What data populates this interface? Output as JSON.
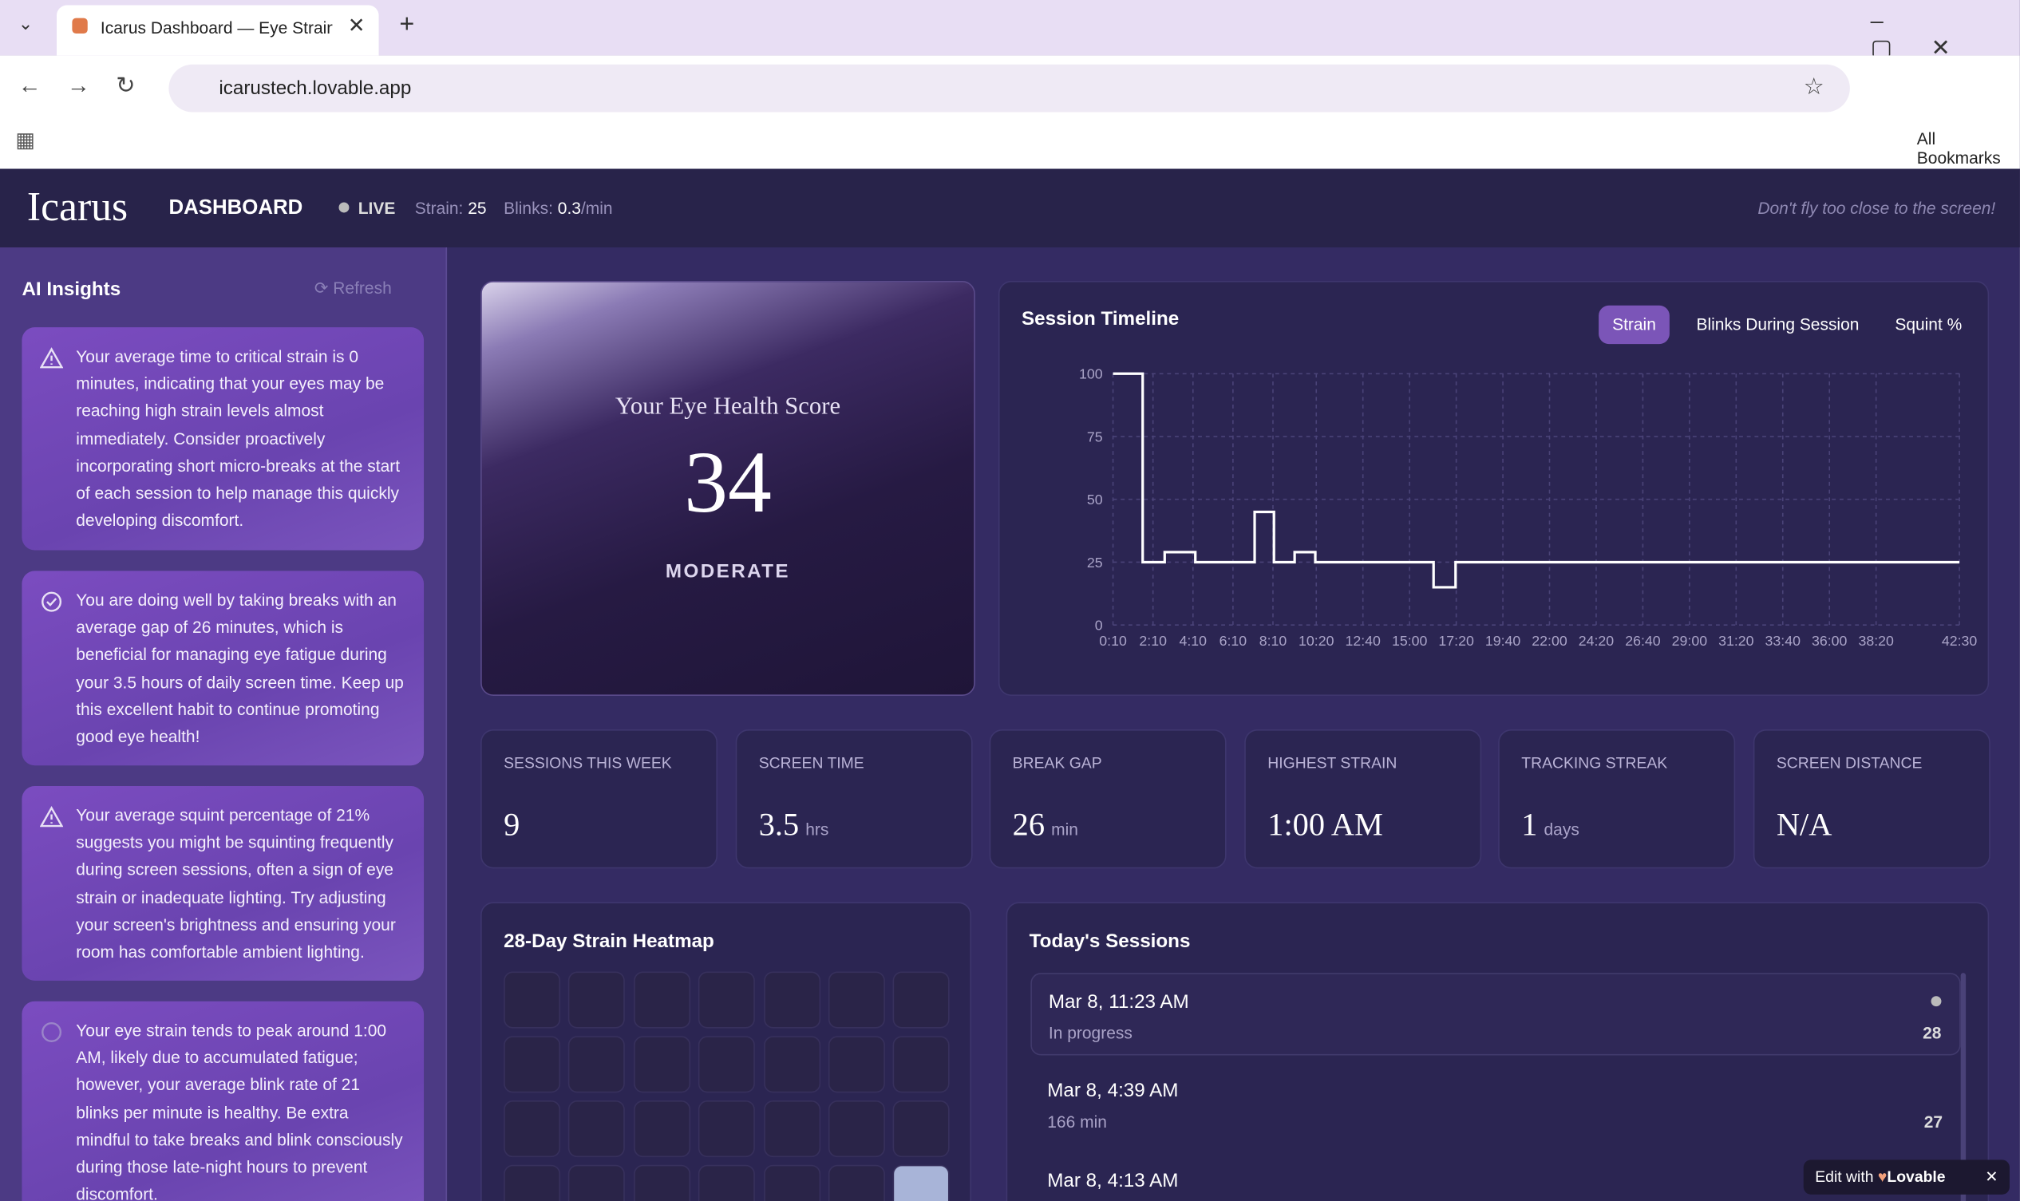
{
  "browser": {
    "tab_title": "Icarus Dashboard — Eye Strain",
    "url": "icarustech.lovable.app",
    "bookmarks": "All Bookmarks"
  },
  "header": {
    "logo": "Icarus",
    "section": "DASHBOARD",
    "live": "LIVE",
    "strain_label": "Strain:",
    "strain": 25,
    "blinks_label": "Blinks:",
    "blinks": 0.3,
    "blinks_unit": "/min",
    "tagline": "Don't fly too close to the screen!"
  },
  "sidebar": {
    "title": "AI Insights",
    "refresh": "Refresh",
    "insights": [
      "Your average time to critical strain is 0 minutes, indicating that your eyes may be reaching high strain levels almost immediately. Consider proactively incorporating short micro-breaks at the start of each session to help manage this quickly developing discomfort.",
      "You are doing well by taking breaks with an average gap of 26 minutes, which is beneficial for managing eye fatigue during your 3.5 hours of daily screen time. Keep up this excellent habit to continue promoting good eye health!",
      "Your average squint percentage of 21% suggests you might be squinting frequently during screen sessions, often a sign of eye strain or inadequate lighting. Try adjusting your screen's brightness and ensuring your room has comfortable ambient lighting.",
      "Your eye strain tends to peak around 1:00 AM, likely due to accumulated fatigue; however, your average blink rate of 21 blinks per minute is healthy. Be extra mindful to take breaks and blink consciously during those late-night hours to prevent discomfort."
    ]
  },
  "score": {
    "title": "Your Eye Health Score",
    "value": 34,
    "level": "MODERATE"
  },
  "chart_data": {
    "type": "line",
    "title": "Session Timeline",
    "tabs": [
      "Strain",
      "Blinks During Session",
      "Squint %"
    ],
    "x": [
      10,
      99,
      99,
      165,
      165,
      257,
      257,
      435,
      435,
      493,
      493,
      555,
      555,
      617,
      617,
      972,
      972,
      1038,
      1038,
      2550
    ],
    "series": [
      {
        "name": "Strain",
        "color": "#ffffff",
        "values": [
          100,
          100,
          25,
          25,
          29,
          29,
          25,
          25,
          45,
          45,
          25,
          25,
          29,
          29,
          25,
          25,
          15,
          15,
          25,
          25
        ]
      }
    ],
    "xlim": [
      10,
      2550
    ],
    "ylim": [
      0,
      100
    ],
    "yticks": [
      0,
      25,
      50,
      75,
      100
    ],
    "xticks": [
      {
        "value": 10,
        "label": "0:10"
      },
      {
        "value": 130,
        "label": "2:10"
      },
      {
        "value": 250,
        "label": "4:10"
      },
      {
        "value": 370,
        "label": "6:10"
      },
      {
        "value": 490,
        "label": "8:10"
      },
      {
        "value": 620,
        "label": "10:20"
      },
      {
        "value": 760,
        "label": "12:40"
      },
      {
        "value": 900,
        "label": "15:00"
      },
      {
        "value": 1040,
        "label": "17:20"
      },
      {
        "value": 1180,
        "label": "19:40"
      },
      {
        "value": 1320,
        "label": "22:00"
      },
      {
        "value": 1460,
        "label": "24:20"
      },
      {
        "value": 1600,
        "label": "26:40"
      },
      {
        "value": 1740,
        "label": "29:00"
      },
      {
        "value": 1880,
        "label": "31:20"
      },
      {
        "value": 2020,
        "label": "33:40"
      },
      {
        "value": 2160,
        "label": "36:00"
      },
      {
        "value": 2300,
        "label": "38:20"
      },
      {
        "value": 2550,
        "label": "42:30"
      }
    ],
    "grid": true
  },
  "stats": [
    {
      "label": "SESSIONS THIS WEEK",
      "value": 9
    },
    {
      "label": "SCREEN TIME",
      "value": 3.5,
      "unit": "hrs"
    },
    {
      "label": "BREAK GAP",
      "value": 26,
      "unit": "min"
    },
    {
      "label": "HIGHEST STRAIN",
      "value": "1:00 AM"
    },
    {
      "label": "TRACKING STREAK",
      "value": 1,
      "unit": "days"
    },
    {
      "label": "SCREEN DISTANCE",
      "value": "N/A"
    }
  ],
  "heatmap": {
    "title": "28-Day Strain Heatmap"
  },
  "sessions": {
    "title": "Today's Sessions",
    "items": [
      {
        "time": "Mar 8, 11:23 AM",
        "status": "In progress",
        "score": 28
      },
      {
        "time": "Mar 8, 4:39 AM",
        "status": "166 min",
        "score": 27
      },
      {
        "time": "Mar 8, 4:13 AM"
      }
    ]
  },
  "badge": {
    "text": "Edit with",
    "brand": "Lovable"
  }
}
